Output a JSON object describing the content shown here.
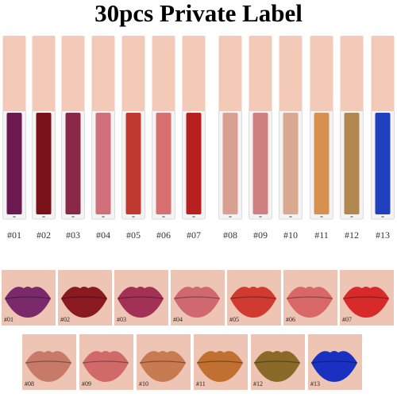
{
  "header": {
    "title": "30pcs Private Label"
  },
  "tubes": [
    {
      "label": "#01",
      "color": "#6a1a50"
    },
    {
      "label": "#02",
      "color": "#7a1018"
    },
    {
      "label": "#03",
      "color": "#8a2848"
    },
    {
      "label": "#04",
      "color": "#d0707a"
    },
    {
      "label": "#05",
      "color": "#c03a30"
    },
    {
      "label": "#06",
      "color": "#d87070"
    },
    {
      "label": "#07",
      "color": "#b82020"
    },
    {
      "label": "#08",
      "color": "#d8a090"
    },
    {
      "label": "#09",
      "color": "#d08080"
    },
    {
      "label": "#10",
      "color": "#d8a890"
    },
    {
      "label": "#11",
      "color": "#d89050"
    },
    {
      "label": "#12",
      "color": "#b08850"
    },
    {
      "label": "#13",
      "color": "#2040c0"
    }
  ],
  "swatches": [
    {
      "label": "#01",
      "color": "#7a2a6a"
    },
    {
      "label": "#02",
      "color": "#8a1a22"
    },
    {
      "label": "#03",
      "color": "#a33055"
    },
    {
      "label": "#04",
      "color": "#d06870"
    },
    {
      "label": "#05",
      "color": "#d03a30"
    },
    {
      "label": "#06",
      "color": "#d86868"
    },
    {
      "label": "#07",
      "color": "#d82a2a"
    },
    {
      "label": "#08",
      "color": "#c87a68"
    },
    {
      "label": "#09",
      "color": "#d06a68"
    },
    {
      "label": "#10",
      "color": "#c87a50"
    },
    {
      "label": "#11",
      "color": "#c07030"
    },
    {
      "label": "#12",
      "color": "#8a6a28"
    },
    {
      "label": "#13",
      "color": "#1a30c0"
    }
  ]
}
